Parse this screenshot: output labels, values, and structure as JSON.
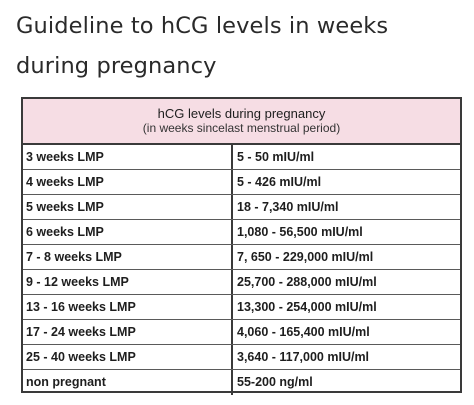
{
  "heading": "Guideline to hCG levels in weeks during pregnancy",
  "table": {
    "title": "hCG levels during pregnancy",
    "subtitle": "(in weeks sincelast menstrual period)",
    "rows": [
      {
        "period": "3 weeks LMP",
        "level": "5 - 50 mIU/ml"
      },
      {
        "period": "4 weeks LMP",
        "level": "5 - 426 mIU/ml"
      },
      {
        "period": "5 weeks LMP",
        "level": "18 - 7,340 mIU/ml"
      },
      {
        "period": "6 weeks LMP",
        "level": "1,080 - 56,500 mIU/ml"
      },
      {
        "period": "7 - 8 weeks LMP",
        "level": "7, 650 - 229,000 mIU/ml"
      },
      {
        "period": "9 - 12 weeks LMP",
        "level": "25,700 - 288,000 mIU/ml"
      },
      {
        "period": "13 - 16 weeks LMP",
        "level": "13,300 - 254,000 mIU/ml"
      },
      {
        "period": "17 - 24 weeks LMP",
        "level": "4,060 - 165,400 mIU/ml"
      },
      {
        "period": "25 - 40 weeks LMP",
        "level": "3,640 - 117,000 mIU/ml"
      },
      {
        "period": "non pregnant",
        "level": "55-200 ng/ml"
      }
    ]
  },
  "colors": {
    "header_background": "#f6dde4",
    "border": "#3a3a3a",
    "text": "#1e1e1e"
  }
}
